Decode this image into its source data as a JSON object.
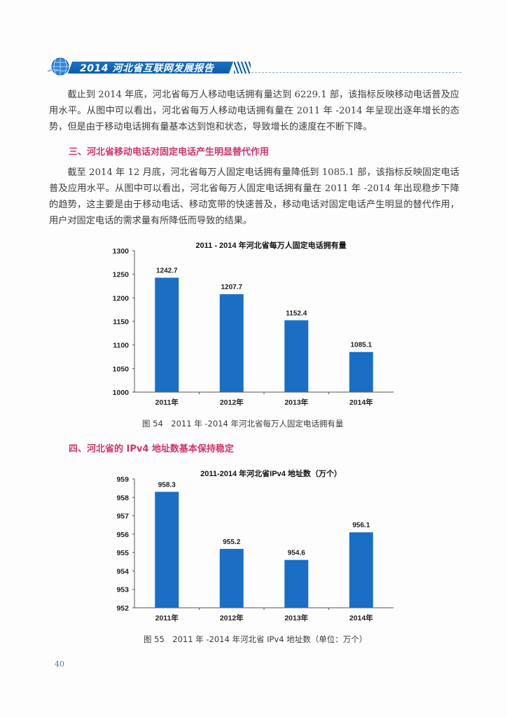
{
  "header": {
    "title": "2014 河北省互联网发展报告",
    "icon": "globe-icon"
  },
  "paragraphs": [
    "截止到 2014 年底，河北省每万人移动电话拥有量达到 6229.1 部，该指标反映移动电话普及应用水平。从图中可以看出，河北省每万人移动电话拥有量在 2011 年 -2014 年呈现出逐年增长的态势，但是由于移动电话拥有量基本达到饱和状态，导致增长的速度在不断下降。",
    "截至 2014 年 12 月底，河北省每万人固定电话拥有量降低到 1085.1 部，该指标反映固定电话普及应用水平。从图中可以看出，河北省每万人固定电话拥有量在 2011 年 -2014 年出现稳步下降的趋势，这主要是由于移动电话、移动宽带的快速普及，移动电话对固定电话产生明显的替代作用，用户对固定电话的需求量有所降低而导致的结果。"
  ],
  "sections": [
    {
      "title": "三、河北省移动电话对固定电话产生明显替代作用"
    },
    {
      "title": "四、河北省的 IPv4 地址数基本保持稳定"
    }
  ],
  "captions": [
    "图 54　2011 年 -2014 年河北省每万人固定电话拥有量",
    "图 55　2011 年 -2014 年河北省 IPv4 地址数（单位：万个）"
  ],
  "page_number": "40",
  "colors": {
    "bar": "#1a6fc4",
    "section_title": "#d2336a",
    "header_band": "#0d5ba8"
  },
  "chart_data": [
    {
      "type": "bar",
      "title": "2011 - 2014 年河北省每万人固定电话拥有量",
      "categories": [
        "2011年",
        "2012年",
        "2013年",
        "2014年"
      ],
      "values": [
        1242.7,
        1207.7,
        1152.4,
        1085.1
      ],
      "labels": [
        "1242.7",
        "1207.7",
        "1152.4",
        "1085.1"
      ],
      "xlabel": "",
      "ylabel": "",
      "ylim": [
        1000,
        1300
      ],
      "yticks": [
        "1000",
        "1050",
        "1100",
        "1150",
        "1200",
        "1250",
        "1300"
      ],
      "grid": false,
      "legend": "none"
    },
    {
      "type": "bar",
      "title": "2011-2014 年河北省IPv4 地址数（万个）",
      "categories": [
        "2011年",
        "2012年",
        "2013年",
        "2014年"
      ],
      "values": [
        958.3,
        955.2,
        954.6,
        956.1
      ],
      "labels": [
        "958.3",
        "955.2",
        "954.6",
        "956.1"
      ],
      "xlabel": "",
      "ylabel": "",
      "ylim": [
        952,
        959
      ],
      "yticks": [
        "952",
        "953",
        "954",
        "955",
        "956",
        "957",
        "958",
        "959"
      ],
      "grid": false,
      "legend": "none"
    }
  ]
}
